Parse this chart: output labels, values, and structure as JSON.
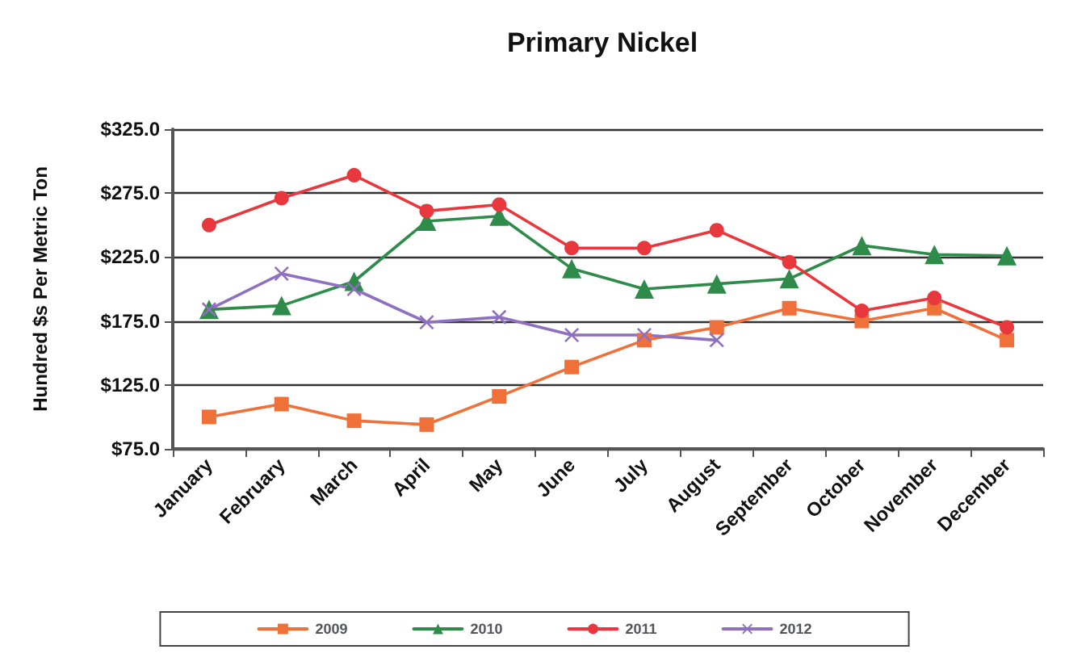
{
  "chart_data": {
    "type": "line",
    "title": "Primary Nickel",
    "ylabel": "Hundred $s Per Metric Ton",
    "categories": [
      "January",
      "February",
      "March",
      "April",
      "May",
      "June",
      "July",
      "August",
      "September",
      "October",
      "November",
      "December"
    ],
    "series": [
      {
        "name": "2009",
        "color": "#f07039",
        "marker": "square",
        "values": [
          100,
          110,
          97,
          94,
          116,
          139,
          160,
          170,
          185,
          175,
          185,
          160
        ]
      },
      {
        "name": "2010",
        "color": "#2e8b4a",
        "marker": "triangle",
        "values": [
          184,
          187,
          206,
          253,
          257,
          216,
          200,
          204,
          208,
          234,
          227,
          226
        ]
      },
      {
        "name": "2011",
        "color": "#e8383d",
        "marker": "circle",
        "values": [
          250,
          271,
          289,
          261,
          266,
          232,
          232,
          246,
          221,
          183,
          193,
          170
        ]
      },
      {
        "name": "2012",
        "color": "#8e6fc0",
        "marker": "cross",
        "values": [
          184,
          212,
          200,
          174,
          178,
          164,
          164,
          160,
          null,
          null,
          null,
          null
        ]
      }
    ],
    "ylim": [
      75,
      325
    ],
    "yticks": [
      {
        "value": 75,
        "label": "$75.0"
      },
      {
        "value": 125,
        "label": "$125.0"
      },
      {
        "value": 175,
        "label": "$175.0"
      },
      {
        "value": 225,
        "label": "$225.0"
      },
      {
        "value": 275,
        "label": "$275.0"
      },
      {
        "value": 325,
        "label": "$325.0"
      }
    ],
    "grid": "y",
    "legend": "bottom"
  }
}
